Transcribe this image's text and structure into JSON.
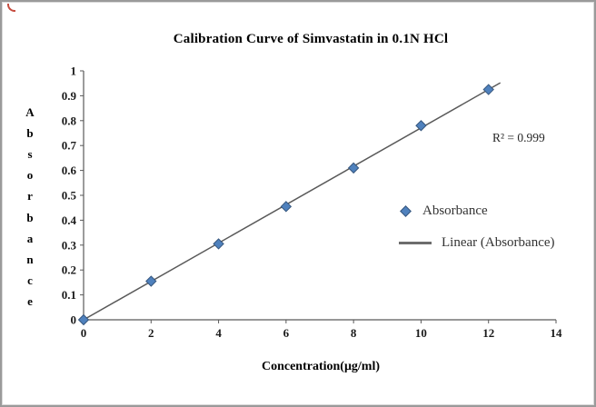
{
  "chart_data": {
    "type": "scatter",
    "title": "Calibration Curve of Simvastatin in 0.1N HCl",
    "xlabel": "Concentration(μg/ml)",
    "ylabel": "Absorbance",
    "x": [
      0,
      2,
      4,
      6,
      8,
      10,
      12
    ],
    "y": [
      0,
      0.155,
      0.305,
      0.455,
      0.61,
      0.78,
      0.925
    ],
    "xlim": [
      0,
      14
    ],
    "ylim": [
      0,
      1
    ],
    "xticks": [
      0,
      2,
      4,
      6,
      8,
      10,
      12,
      14
    ],
    "yticks": [
      0,
      0.1,
      0.2,
      0.3,
      0.4,
      0.5,
      0.6,
      0.7,
      0.8,
      0.9,
      1
    ],
    "grid": false,
    "annotation": "R² = 0.999",
    "legend_position": "right-inside",
    "axis_color": "#595959",
    "marker_color": "#4f81bd",
    "marker_edge": "#36567d",
    "trendline": {
      "name": "Linear (Absorbance)",
      "color": "#595959",
      "x": [
        0,
        12.35
      ],
      "y": [
        0,
        0.952
      ]
    }
  },
  "legend": [
    {
      "label": "Absorbance",
      "marker": "diamond",
      "color": "#4f81bd"
    },
    {
      "label": "Linear (Absorbance)",
      "marker": "line",
      "color": "#6d6d6d"
    }
  ]
}
